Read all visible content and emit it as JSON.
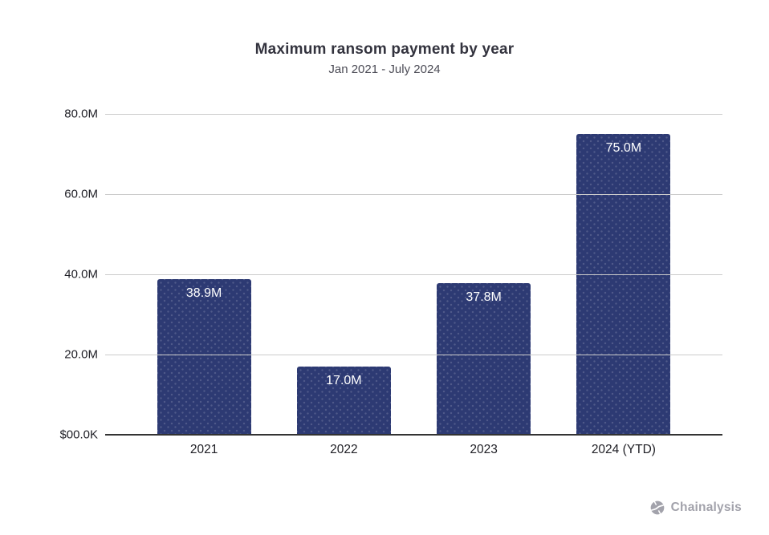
{
  "header": {
    "title": "Maximum ransom payment by year",
    "subtitle": "Jan 2021 - July 2024"
  },
  "chart_data": {
    "type": "bar",
    "title": "Maximum ransom payment by year",
    "subtitle": "Jan 2021 - July 2024",
    "categories": [
      "2021",
      "2022",
      "2023",
      "2024 (YTD)"
    ],
    "values": [
      38.9,
      17.0,
      37.8,
      75.0
    ],
    "bar_labels": [
      "38.9M",
      "17.0M",
      "37.8M",
      "75.0M"
    ],
    "xlabel": "",
    "ylabel": "",
    "ylim": [
      0,
      80
    ],
    "yticks": [
      {
        "value": 0,
        "label": "$00.0K"
      },
      {
        "value": 20,
        "label": "20.0M"
      },
      {
        "value": 40,
        "label": "40.0M"
      },
      {
        "value": 60,
        "label": "60.0M"
      },
      {
        "value": 80,
        "label": "80.0M"
      }
    ],
    "grid": true,
    "legend": false
  },
  "colors": {
    "bar_fill": "#2d3a73",
    "bar_dot": "rgba(255,255,255,0.16)",
    "bar_label_text": "#ffffff",
    "gridline": "#cbcbcb",
    "baseline": "#333333",
    "title_text": "#33333e",
    "subtitle_text": "#4b4b55",
    "axis_text": "#1f1f26",
    "brand_gray": "#a2a2ab",
    "background": "#ffffff"
  },
  "footer": {
    "brand": "Chainalysis",
    "icon": "chainalysis-mark"
  }
}
